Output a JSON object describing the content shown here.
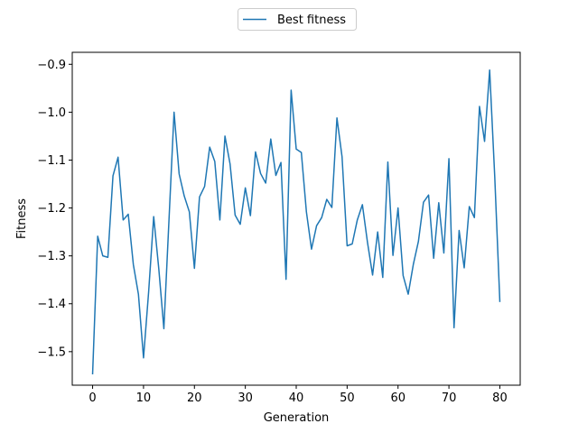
{
  "chart_data": {
    "type": "line",
    "xlabel": "Generation",
    "ylabel": "Fitness",
    "xlim": [
      -4,
      84
    ],
    "ylim": [
      -1.57,
      -0.875
    ],
    "xticks": [
      0,
      10,
      20,
      30,
      40,
      50,
      60,
      70,
      80
    ],
    "yticks": [
      -1.5,
      -1.4,
      -1.3,
      -1.2,
      -1.1,
      -1.0,
      -0.9
    ],
    "ytick_labels": [
      "−1.5",
      "−1.4",
      "−1.3",
      "−1.2",
      "−1.1",
      "−1.0",
      "−0.9"
    ],
    "grid": false,
    "legend_position": "upper center, outside the plot area",
    "series": [
      {
        "name": "Best fitness",
        "color": "#1f77b4",
        "x": [
          0,
          1,
          2,
          3,
          4,
          5,
          6,
          7,
          8,
          9,
          10,
          11,
          12,
          13,
          14,
          15,
          16,
          17,
          18,
          19,
          20,
          21,
          22,
          23,
          24,
          25,
          26,
          27,
          28,
          29,
          30,
          31,
          32,
          33,
          34,
          35,
          36,
          37,
          38,
          39,
          40,
          41,
          42,
          43,
          44,
          45,
          46,
          47,
          48,
          49,
          50,
          51,
          52,
          53,
          54,
          55,
          56,
          57,
          58,
          59,
          60,
          61,
          62,
          63,
          64,
          65,
          66,
          67,
          68,
          69,
          70,
          71,
          72,
          73,
          74,
          75,
          76,
          77,
          78,
          79,
          80
        ],
        "y": [
          -1.546,
          -1.259,
          -1.3,
          -1.303,
          -1.133,
          -1.094,
          -1.225,
          -1.213,
          -1.318,
          -1.38,
          -1.513,
          -1.376,
          -1.218,
          -1.327,
          -1.452,
          -1.226,
          -1.0,
          -1.129,
          -1.175,
          -1.208,
          -1.326,
          -1.177,
          -1.155,
          -1.073,
          -1.103,
          -1.225,
          -1.05,
          -1.108,
          -1.215,
          -1.234,
          -1.158,
          -1.216,
          -1.083,
          -1.128,
          -1.148,
          -1.056,
          -1.132,
          -1.105,
          -1.349,
          -0.954,
          -1.077,
          -1.084,
          -1.208,
          -1.286,
          -1.237,
          -1.22,
          -1.182,
          -1.199,
          -1.012,
          -1.093,
          -1.279,
          -1.275,
          -1.225,
          -1.193,
          -1.272,
          -1.34,
          -1.25,
          -1.345,
          -1.104,
          -1.299,
          -1.2,
          -1.341,
          -1.38,
          -1.318,
          -1.27,
          -1.188,
          -1.173,
          -1.305,
          -1.189,
          -1.294,
          -1.097,
          -1.45,
          -1.247,
          -1.325,
          -1.197,
          -1.22,
          -0.988,
          -1.061,
          -0.912,
          -1.135,
          -1.395
        ]
      }
    ]
  }
}
